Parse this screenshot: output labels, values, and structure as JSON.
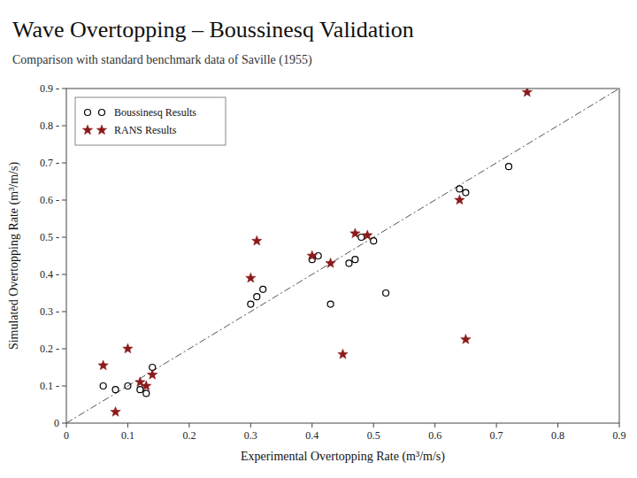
{
  "chart_data": {
    "type": "scatter",
    "title": "Wave Overtopping – Boussinesq Validation",
    "subtitle": "Comparison with standard benchmark data of Saville (1955)",
    "xlabel": "Experimental Overtopping Rate (m³/m/s)",
    "ylabel": "Simulated Overtopping Rate (m³/m/s)",
    "xlim": [
      0,
      0.9
    ],
    "ylim": [
      0,
      0.9
    ],
    "xticks": [
      0,
      0.1,
      0.2,
      0.3,
      0.4,
      0.5,
      0.6,
      0.7,
      0.8,
      0.9
    ],
    "yticks": [
      0,
      {
        "value": 0.1,
        "label": "0.1 -"
      },
      {
        "value": 0.2,
        "label": "0.2 -"
      },
      {
        "value": 0.3,
        "label": "0.3 -"
      },
      {
        "value": 0.4,
        "label": "0.4 -"
      },
      {
        "value": 0.5,
        "label": "0.5 -"
      },
      {
        "value": 0.6,
        "label": "0.6 -"
      },
      {
        "value": 0.7,
        "label": "0.7 -"
      },
      {
        "value": 0.8,
        "label": "0.8 -"
      },
      {
        "value": 0.9,
        "label": "0.9 -"
      }
    ],
    "legend": "upper left",
    "series": [
      {
        "name": "Boussinesq Results",
        "color": "black",
        "marker": "circle",
        "x": [
          0.06,
          0.08,
          0.1,
          0.12,
          0.13,
          0.14,
          0.3,
          0.31,
          0.32,
          0.4,
          0.41,
          0.43,
          0.46,
          0.47,
          0.48,
          0.5,
          0.52,
          0.64,
          0.65,
          0.72
        ],
        "values": [
          0.1,
          0.09,
          0.1,
          0.09,
          0.08,
          0.15,
          0.32,
          0.34,
          0.36,
          0.44,
          0.45,
          0.32,
          0.43,
          0.44,
          0.5,
          0.49,
          0.35,
          0.63,
          0.62,
          0.69
        ]
      },
      {
        "name": "RANS Results",
        "color": "#8b1a1a",
        "marker": "star",
        "x": [
          0.06,
          0.08,
          0.1,
          0.12,
          0.13,
          0.14,
          0.3,
          0.31,
          0.4,
          0.43,
          0.45,
          0.47,
          0.49,
          0.64,
          0.65,
          0.75
        ],
        "values": [
          0.155,
          0.03,
          0.2,
          0.11,
          0.1,
          0.13,
          0.39,
          0.49,
          0.45,
          0.43,
          0.185,
          0.51,
          0.505,
          0.6,
          0.225,
          0.89
        ]
      }
    ]
  }
}
